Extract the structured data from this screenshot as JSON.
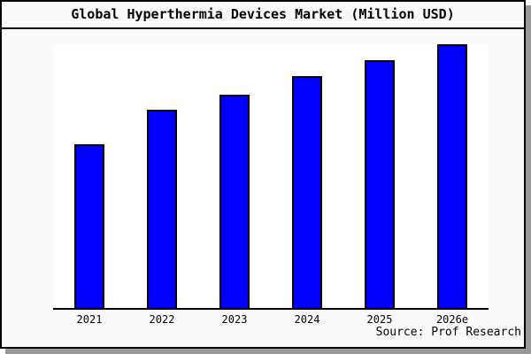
{
  "window": {
    "background": "#fafafa",
    "border_color": "#000000",
    "shadow_color": "#999999"
  },
  "header": {
    "title": "Global Hyperthermia Devices Market (Million USD)"
  },
  "footer": {
    "source": "Source: Prof Research"
  },
  "chart_data": {
    "type": "bar",
    "title": "Global Hyperthermia Devices Market (Million USD)",
    "categories": [
      "2021",
      "2022",
      "2023",
      "2024",
      "2025",
      "2026e"
    ],
    "values": [
      62,
      75,
      81,
      88,
      94,
      100
    ],
    "value_scale": "relative bar heights; chart shows no numeric y-axis labels (tallest bar = 100)",
    "xlabel": "",
    "ylabel": "",
    "ylim": [
      0,
      100
    ],
    "y_axis_visible": false,
    "gridlines": false,
    "legend": false,
    "bar_color": "#0000ff",
    "bar_border_color": "#000000",
    "plot_background": "#ffffff",
    "source": "Source: Prof Research"
  }
}
